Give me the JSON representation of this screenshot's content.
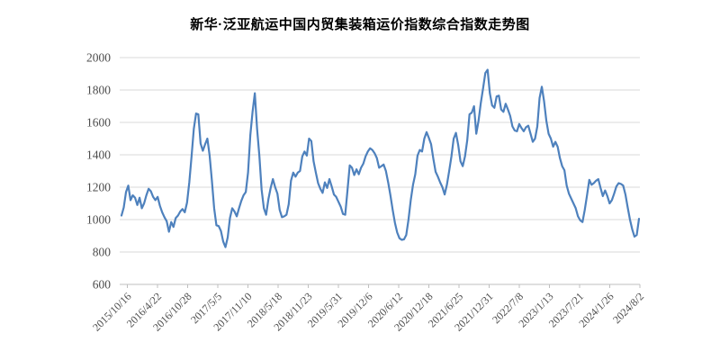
{
  "chart_data": {
    "type": "line",
    "title": "新华·泛亚航运中国内贸集装箱运价指数综合指数走势图",
    "x_tick_labels": [
      "2015/10/16",
      "2016/4/22",
      "2016/10/28",
      "2017/5/5",
      "2017/11/10",
      "2018/5/18",
      "2018/11/23",
      "2019/5/31",
      "2019/12/6",
      "2020/6/12",
      "2020/12/18",
      "2021/6/25",
      "2021/12/31",
      "2022/7/8",
      "2023/1/13",
      "2023/7/21",
      "2024/1/26",
      "2024/8/2"
    ],
    "y_ticks": [
      600,
      800,
      1000,
      1200,
      1400,
      1600,
      1800,
      2000
    ],
    "ylim": [
      600,
      2000
    ],
    "grid": true,
    "legend_position": "none",
    "colors": {
      "line": "#4E81BD",
      "gridline": "#D9D9D9",
      "axis": "#BFBFBF",
      "tick_label": "#4D4D4D",
      "title": "#000000"
    },
    "series": [
      {
        "name": "综合指数",
        "x_start": "2015/10/16",
        "x_end": "2024/8/2",
        "values": [
          1025,
          1075,
          1170,
          1210,
          1120,
          1150,
          1135,
          1090,
          1135,
          1070,
          1100,
          1150,
          1190,
          1175,
          1140,
          1120,
          1140,
          1085,
          1045,
          1015,
          990,
          925,
          985,
          955,
          1010,
          1025,
          1050,
          1065,
          1045,
          1105,
          1230,
          1390,
          1560,
          1655,
          1650,
          1470,
          1425,
          1465,
          1500,
          1395,
          1240,
          1070,
          965,
          960,
          930,
          865,
          830,
          890,
          1010,
          1070,
          1050,
          1020,
          1070,
          1115,
          1150,
          1170,
          1290,
          1520,
          1665,
          1780,
          1560,
          1395,
          1185,
          1070,
          1030,
          1125,
          1195,
          1250,
          1200,
          1160,
          1060,
          1015,
          1020,
          1030,
          1095,
          1240,
          1290,
          1265,
          1290,
          1300,
          1390,
          1420,
          1395,
          1500,
          1485,
          1360,
          1290,
          1225,
          1190,
          1165,
          1230,
          1195,
          1250,
          1205,
          1155,
          1140,
          1110,
          1080,
          1035,
          1030,
          1180,
          1335,
          1320,
          1275,
          1310,
          1280,
          1320,
          1345,
          1390,
          1420,
          1440,
          1430,
          1410,
          1380,
          1320,
          1330,
          1340,
          1300,
          1230,
          1150,
          1060,
          980,
          920,
          885,
          875,
          878,
          905,
          1000,
          1120,
          1215,
          1280,
          1395,
          1430,
          1420,
          1500,
          1540,
          1505,
          1465,
          1375,
          1295,
          1265,
          1230,
          1200,
          1155,
          1215,
          1300,
          1390,
          1500,
          1535,
          1460,
          1360,
          1330,
          1390,
          1490,
          1650,
          1660,
          1700,
          1530,
          1610,
          1720,
          1810,
          1905,
          1925,
          1780,
          1705,
          1690,
          1760,
          1765,
          1680,
          1665,
          1715,
          1680,
          1640,
          1575,
          1550,
          1545,
          1590,
          1565,
          1545,
          1570,
          1580,
          1530,
          1480,
          1500,
          1575,
          1750,
          1820,
          1730,
          1610,
          1530,
          1500,
          1450,
          1480,
          1450,
          1380,
          1330,
          1305,
          1210,
          1160,
          1130,
          1100,
          1070,
          1020,
          995,
          985,
          1060,
          1150,
          1245,
          1215,
          1225,
          1240,
          1250,
          1195,
          1145,
          1180,
          1145,
          1100,
          1120,
          1160,
          1205,
          1225,
          1220,
          1210,
          1155,
          1075,
          1000,
          940,
          895,
          905,
          1005
        ]
      }
    ]
  }
}
